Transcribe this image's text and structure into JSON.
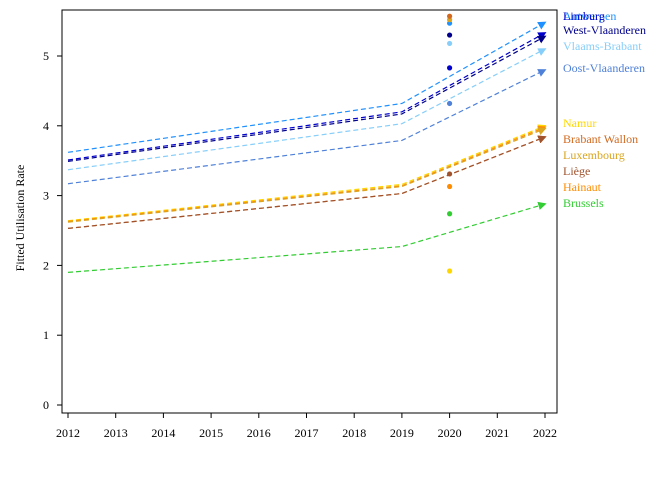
{
  "chart_data": {
    "type": "line",
    "title": "",
    "xlabel": "",
    "ylabel": "Fitted Utilisation Rate",
    "xlim": [
      2012,
      2022
    ],
    "ylim": [
      0,
      5.5
    ],
    "x_ticks": [
      "2012",
      "2013",
      "2014",
      "2015",
      "2016",
      "2017",
      "2018",
      "2019",
      "2020",
      "2021",
      "2022"
    ],
    "y_ticks": [
      "0",
      "1",
      "2",
      "3",
      "4",
      "5"
    ],
    "grid": false,
    "legend": "right, direct labels at line ends",
    "x": [
      2012,
      2019,
      2022
    ],
    "series": [
      {
        "name": "Antwerpen",
        "color": "#1e90ff",
        "values": [
          3.62,
          4.32,
          5.48
        ],
        "observed_2020": 5.47
      },
      {
        "name": "Limburg",
        "color": "#0000cd",
        "values": [
          3.51,
          4.2,
          5.33
        ],
        "observed_2020": 4.83
      },
      {
        "name": "West-Vlaanderen",
        "color": "#00008b",
        "values": [
          3.49,
          4.17,
          5.28
        ],
        "observed_2020": 5.3
      },
      {
        "name": "Vlaams-Brabant",
        "color": "#87cefa",
        "values": [
          3.37,
          4.03,
          5.1
        ],
        "observed_2020": 5.18
      },
      {
        "name": "Oost-Vlaanderen",
        "color": "#4f81d9",
        "values": [
          3.17,
          3.79,
          4.8
        ],
        "observed_2020": 4.32
      },
      {
        "name": "Namur",
        "color": "#ffd700",
        "values": [
          2.64,
          3.16,
          4.0
        ],
        "observed_2020": 1.92
      },
      {
        "name": "Hainaut",
        "color": "#ff8c00",
        "values": [
          2.63,
          3.14,
          3.98
        ],
        "observed_2020": 3.13
      },
      {
        "name": "Luxembourg",
        "color": "#daa520",
        "values": [
          2.62,
          3.13,
          3.96
        ],
        "observed_2020": 5.52
      },
      {
        "name": "Brabant Wallon",
        "color": "#d2691e",
        "values": [
          2.53,
          3.03,
          3.84
        ],
        "observed_2020": 5.57
      },
      {
        "name": "Liège",
        "color": "#a0522d",
        "values": [
          2.53,
          3.03,
          3.84
        ],
        "observed_2020": 3.31
      },
      {
        "name": "Brussels",
        "color": "#32cd32",
        "values": [
          1.9,
          2.27,
          2.88
        ],
        "observed_2020": 2.74
      }
    ],
    "observed_x": 2020
  }
}
